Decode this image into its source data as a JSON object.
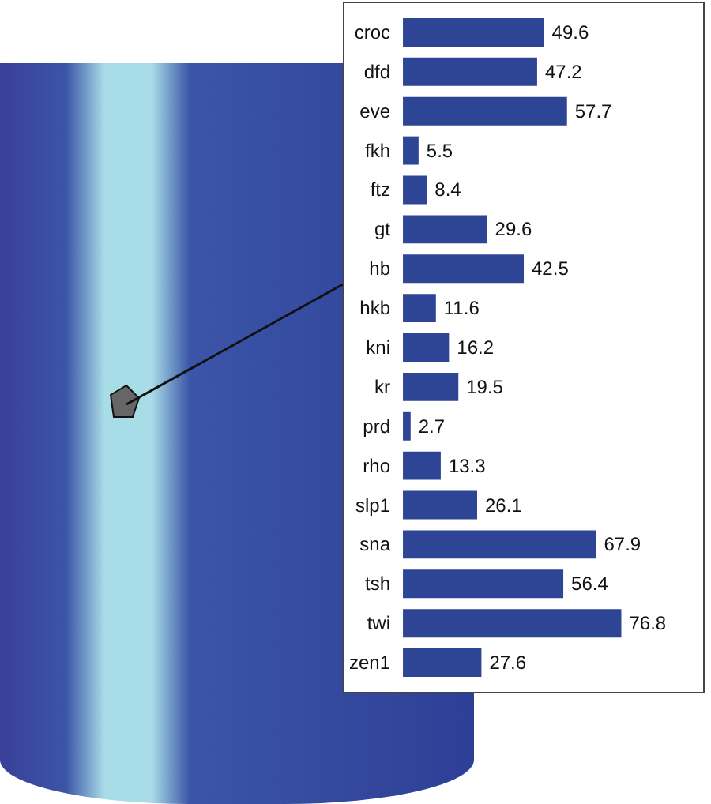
{
  "chart_data": {
    "type": "bar",
    "orientation": "horizontal",
    "categories": [
      "croc",
      "dfd",
      "eve",
      "fkh",
      "ftz",
      "gt",
      "hb",
      "hkb",
      "kni",
      "kr",
      "prd",
      "rho",
      "slp1",
      "sna",
      "tsh",
      "twi",
      "zen1"
    ],
    "values": [
      49.6,
      47.2,
      57.7,
      5.5,
      8.4,
      29.6,
      42.5,
      11.6,
      16.2,
      19.5,
      2.7,
      13.3,
      26.1,
      67.9,
      56.4,
      76.8,
      27.6
    ],
    "color": "#2e4494",
    "data_labels": true,
    "grid": false
  }
}
